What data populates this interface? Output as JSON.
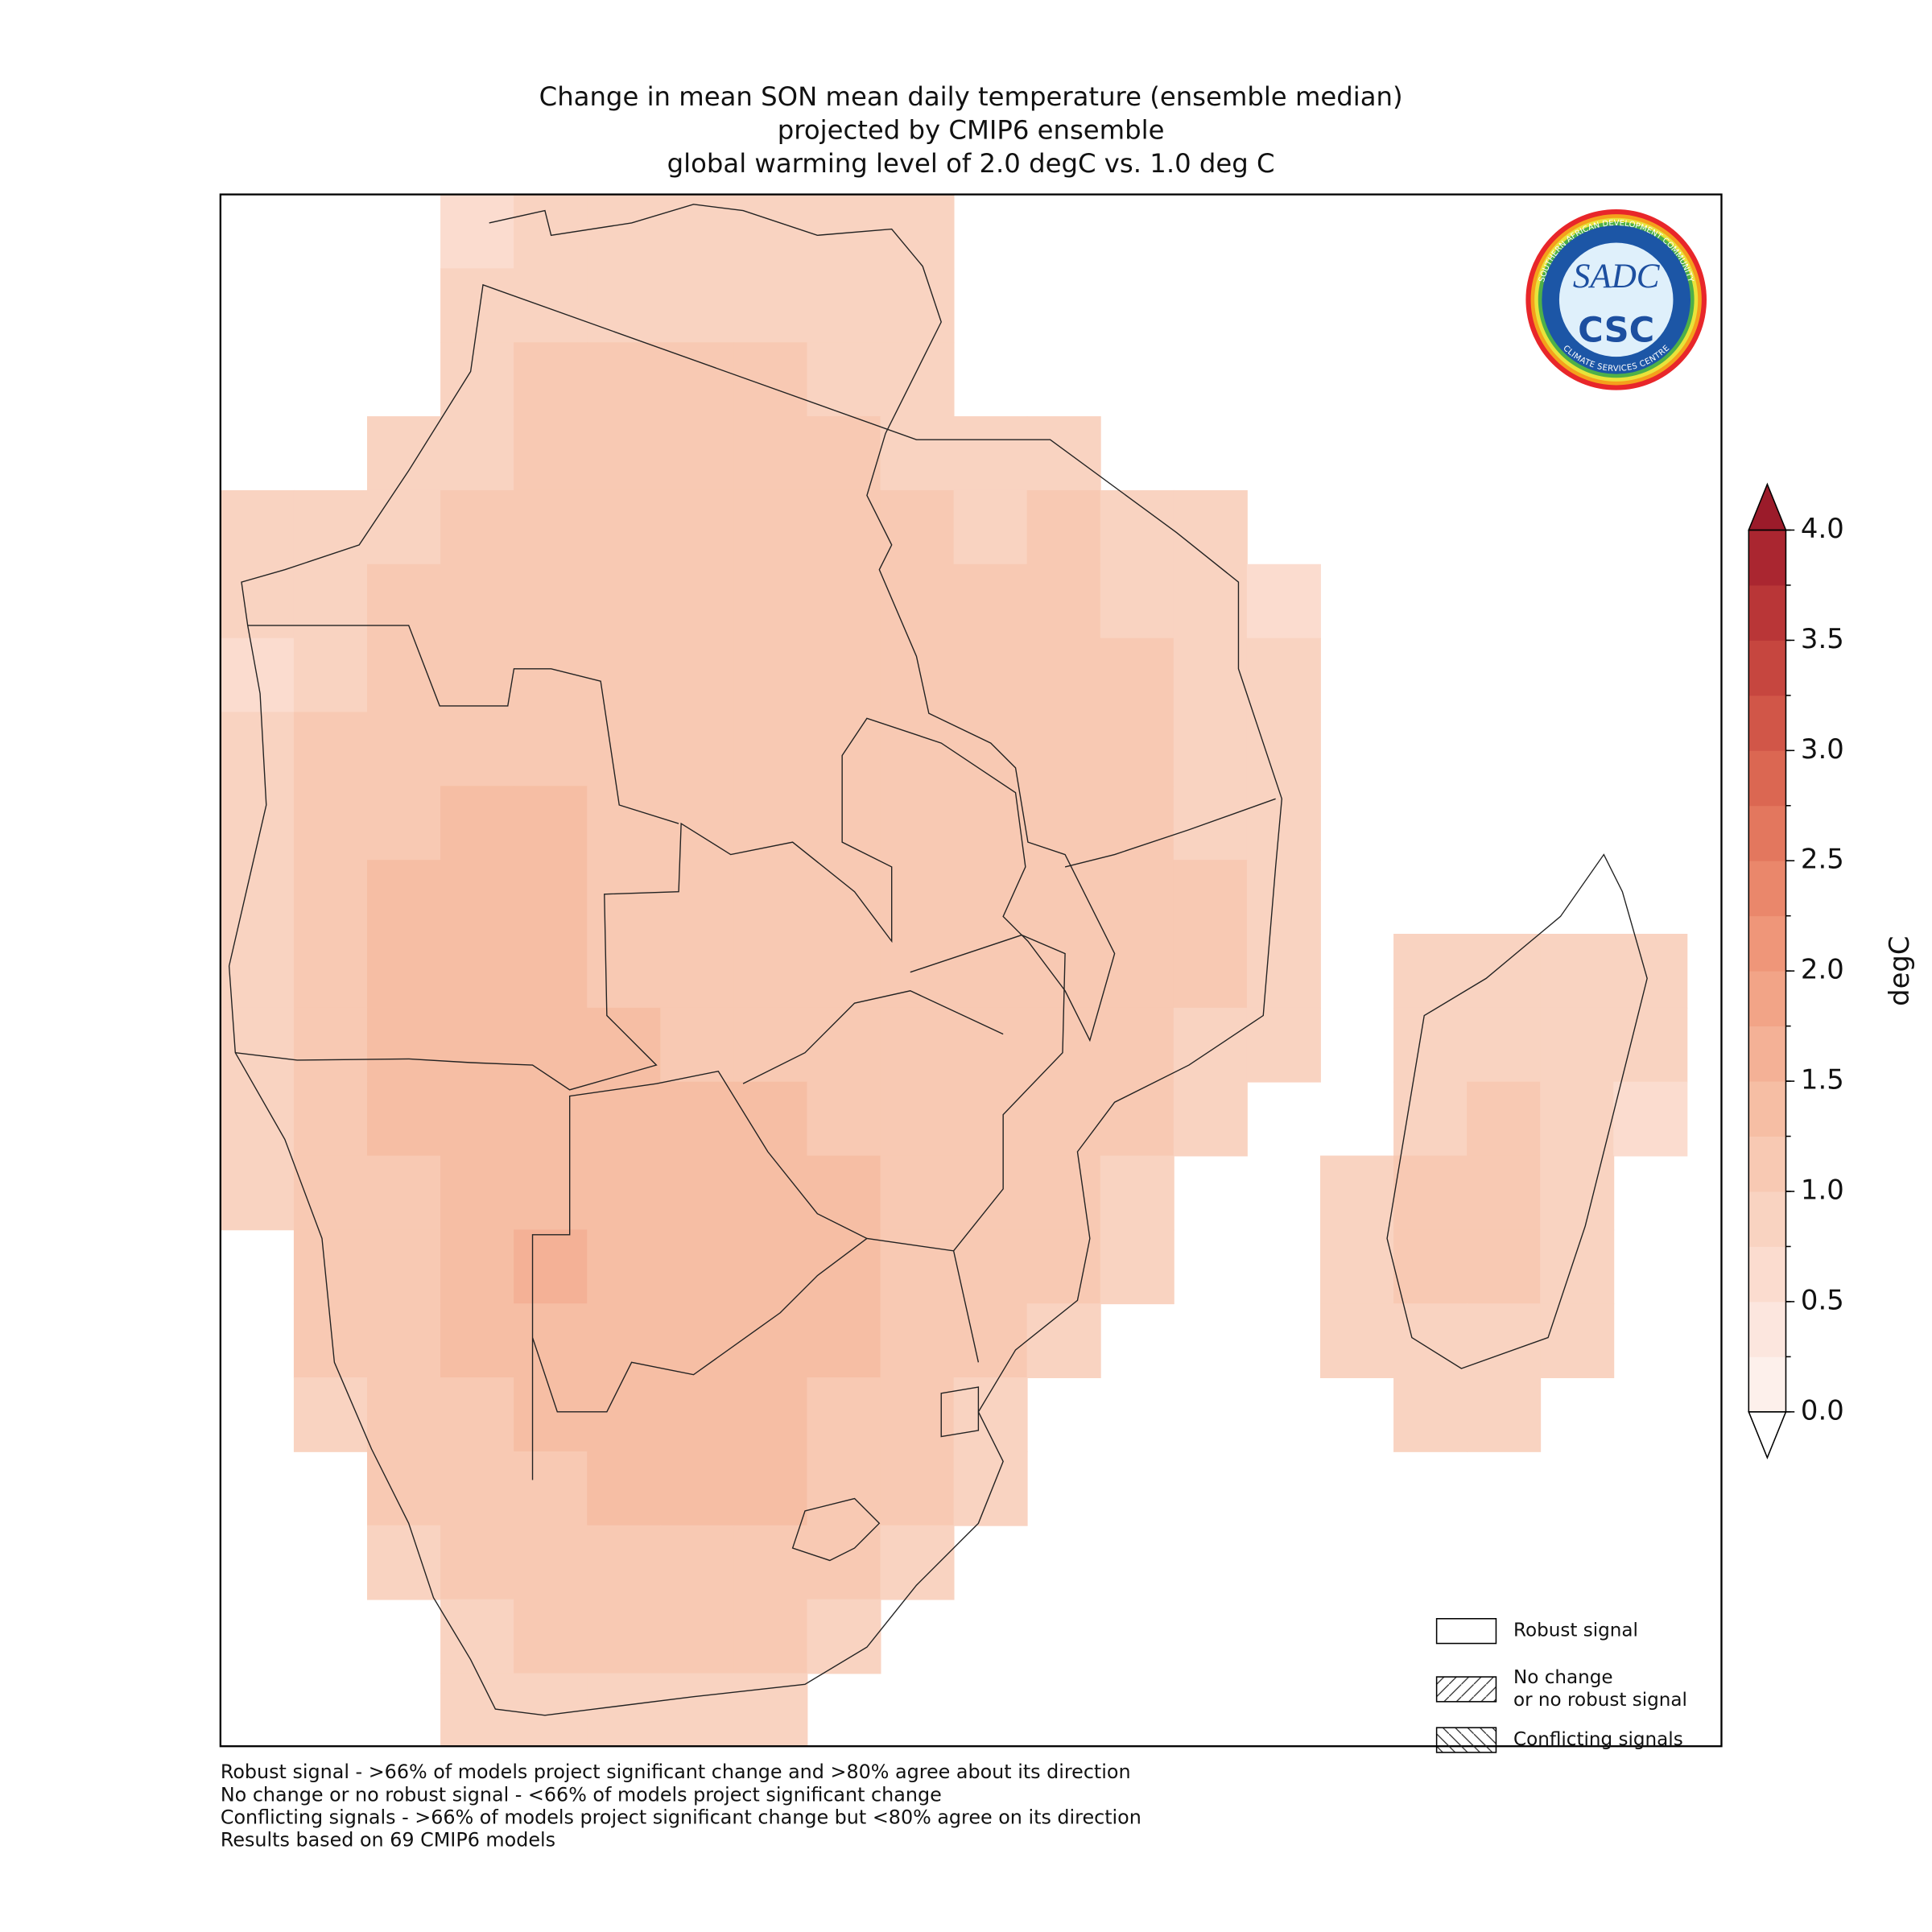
{
  "title": [
    "Change in mean SON mean daily temperature (ensemble median)",
    "projected by CMIP6 ensemble",
    "global warming level of 2.0 degC vs. 1.0 deg C"
  ],
  "map": {
    "cells": [
      [
        null,
        null,
        null,
        0.7,
        0.8,
        0.9,
        0.9,
        0.9,
        0.9,
        0.8,
        null,
        null,
        null,
        null,
        null,
        null,
        null,
        null,
        null,
        null
      ],
      [
        null,
        null,
        null,
        0.8,
        0.9,
        0.9,
        0.9,
        0.9,
        0.9,
        0.8,
        null,
        null,
        null,
        null,
        null,
        null,
        null,
        null,
        null,
        null
      ],
      [
        null,
        null,
        null,
        0.9,
        1.0,
        1.1,
        1.1,
        1.0,
        0.9,
        0.8,
        null,
        null,
        null,
        null,
        null,
        null,
        null,
        null,
        null,
        null
      ],
      [
        null,
        null,
        0.8,
        0.9,
        1.1,
        1.1,
        1.1,
        1.0,
        1.0,
        0.9,
        0.8,
        0.8,
        null,
        null,
        null,
        null,
        null,
        null,
        null,
        null
      ],
      [
        0.8,
        0.8,
        0.9,
        1.0,
        1.1,
        1.1,
        1.1,
        1.1,
        1.0,
        1.0,
        0.9,
        1.0,
        0.9,
        0.8,
        null,
        null,
        null,
        null,
        null,
        null
      ],
      [
        0.8,
        0.9,
        1.0,
        1.0,
        1.1,
        1.1,
        1.1,
        1.1,
        1.0,
        1.0,
        1.0,
        1.0,
        0.9,
        0.8,
        0.7,
        null,
        null,
        null,
        null,
        null
      ],
      [
        0.7,
        0.9,
        1.1,
        1.1,
        1.1,
        1.1,
        1.1,
        1.1,
        1.0,
        1.0,
        1.0,
        1.0,
        1.0,
        0.9,
        0.8,
        null,
        null,
        null,
        null,
        null
      ],
      [
        0.8,
        1.0,
        1.1,
        1.2,
        1.2,
        1.1,
        1.1,
        1.1,
        1.0,
        1.1,
        1.1,
        1.0,
        1.0,
        0.9,
        0.8,
        null,
        null,
        null,
        null,
        null
      ],
      [
        0.9,
        1.1,
        1.2,
        1.3,
        1.3,
        1.2,
        1.1,
        1.1,
        1.1,
        1.2,
        1.1,
        1.0,
        1.0,
        0.9,
        0.8,
        null,
        null,
        null,
        null,
        null
      ],
      [
        0.9,
        1.1,
        1.3,
        1.3,
        1.3,
        1.2,
        1.2,
        1.2,
        1.2,
        1.2,
        1.1,
        1.1,
        1.1,
        1.0,
        0.9,
        null,
        null,
        null,
        null,
        null
      ],
      [
        0.9,
        1.1,
        1.3,
        1.3,
        1.3,
        1.2,
        1.2,
        1.2,
        1.2,
        1.2,
        1.1,
        1.1,
        1.1,
        1.0,
        0.9,
        null,
        0.8,
        0.9,
        0.9,
        0.8
      ],
      [
        0.9,
        1.1,
        1.3,
        1.4,
        1.4,
        1.3,
        1.2,
        1.2,
        1.1,
        1.1,
        1.1,
        1.1,
        1.0,
        0.9,
        0.8,
        null,
        0.8,
        0.9,
        0.9,
        0.8
      ],
      [
        0.8,
        1.1,
        1.3,
        1.4,
        1.4,
        1.4,
        1.4,
        1.3,
        1.2,
        1.1,
        1.1,
        1.1,
        1.0,
        0.8,
        null,
        null,
        0.9,
        1.0,
        0.9,
        0.7
      ],
      [
        0.8,
        1.1,
        1.2,
        1.4,
        1.4,
        1.4,
        1.4,
        1.4,
        1.3,
        1.2,
        1.2,
        1.0,
        0.9,
        null,
        null,
        0.8,
        1.0,
        1.0,
        0.9,
        null
      ],
      [
        null,
        1.1,
        1.2,
        1.4,
        1.5,
        1.4,
        1.4,
        1.4,
        1.3,
        1.2,
        1.1,
        1.0,
        0.9,
        null,
        null,
        0.8,
        1.0,
        1.0,
        0.9,
        null
      ],
      [
        null,
        1.1,
        1.2,
        1.4,
        1.4,
        1.4,
        1.4,
        1.4,
        1.3,
        1.2,
        1.1,
        0.9,
        null,
        null,
        null,
        0.8,
        0.9,
        0.9,
        0.8,
        null
      ],
      [
        null,
        0.9,
        1.1,
        1.2,
        1.3,
        1.3,
        1.4,
        1.3,
        1.2,
        1.1,
        0.9,
        null,
        null,
        null,
        null,
        null,
        0.8,
        0.8,
        null,
        null
      ],
      [
        null,
        null,
        1.0,
        1.1,
        1.2,
        1.3,
        1.3,
        1.3,
        1.2,
        1.1,
        0.8,
        null,
        null,
        null,
        null,
        null,
        null,
        null,
        null,
        null
      ],
      [
        null,
        null,
        0.8,
        1.0,
        1.1,
        1.2,
        1.2,
        1.2,
        1.1,
        0.9,
        null,
        null,
        null,
        null,
        null,
        null,
        null,
        null,
        null,
        null
      ],
      [
        null,
        null,
        null,
        0.9,
        1.0,
        1.1,
        1.1,
        1.0,
        0.9,
        null,
        null,
        null,
        null,
        null,
        null,
        null,
        null,
        null,
        null
      ],
      [
        null,
        null,
        null,
        0.8,
        0.8,
        0.8,
        0.8,
        0.8,
        null,
        null,
        null,
        null,
        null,
        null,
        null,
        null,
        null,
        null
      ]
    ]
  },
  "colorbar": {
    "label": "degC",
    "extend": "both",
    "boundaries": [
      0,
      0.25,
      0.5,
      0.75,
      1,
      1.25,
      1.5,
      1.75,
      2,
      2.25,
      2.5,
      2.75,
      3,
      3.25,
      3.5,
      3.75,
      4
    ],
    "colors": [
      "#fdf0eb",
      "#fce6de",
      "#fbdccf",
      "#f9d3c1",
      "#f8c9b3",
      "#f6bea4",
      "#f4b196",
      "#f2a487",
      "#ef9679",
      "#ea876b",
      "#e3775e",
      "#db6752",
      "#d15648",
      "#c6463f",
      "#b93637",
      "#aa2630"
    ],
    "over_color": "#9b1b2a",
    "under_color": "#ffffff",
    "ticks": [
      {
        "value": 0,
        "label": "0.0"
      },
      {
        "value": 0.5,
        "label": "0.5"
      },
      {
        "value": 1,
        "label": "1.0"
      },
      {
        "value": 1.5,
        "label": "1.5"
      },
      {
        "value": 2,
        "label": "2.0"
      },
      {
        "value": 2.5,
        "label": "2.5"
      },
      {
        "value": 3,
        "label": "3.0"
      },
      {
        "value": 3.5,
        "label": "3.5"
      },
      {
        "value": 4,
        "label": "4.0"
      }
    ]
  },
  "legend": [
    {
      "label": [
        "Robust signal"
      ],
      "hatch": "none"
    },
    {
      "label": [
        "No change",
        "or no robust signal"
      ],
      "hatch": "forward"
    },
    {
      "label": [
        "Conflicting signals"
      ],
      "hatch": "back"
    }
  ],
  "footnotes": [
    "Robust signal - >66% of models project significant change and >80% agree about its direction",
    "No change or no robust signal - <66% of models project significant change",
    "Conflicting signals - >66% of models project significant change but <80% agree on its direction",
    "Results based on 69 CMIP6 models"
  ],
  "logo": {
    "top": "SADC",
    "bottom": "CSC",
    "ring_top": "SOUTHERN AFRICAN DEVELOPMENT COMMUNITY",
    "ring_bottom": "CLIMATE SERVICES CENTRE"
  }
}
